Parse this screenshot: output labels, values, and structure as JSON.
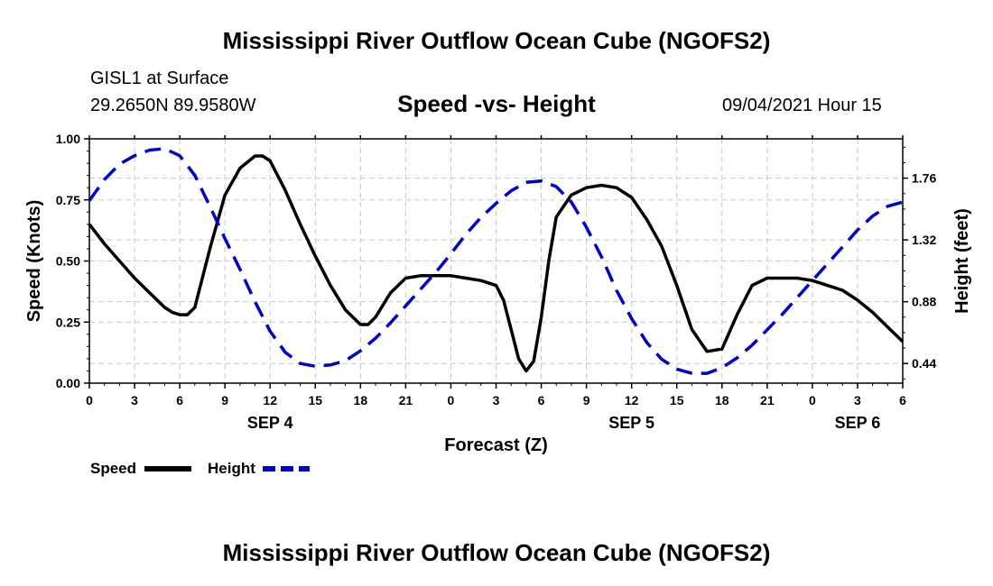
{
  "header": {
    "title": "Mississippi River Outflow Ocean Cube (NGOFS2)",
    "station": "GISL1 at Surface",
    "coords": "29.2650N  89.9580W",
    "subtitle": "Speed -vs- Height",
    "timestamp": "09/04/2021 Hour 15"
  },
  "footer": {
    "title": "Mississippi River Outflow Ocean Cube (NGOFS2)"
  },
  "colors": {
    "speed": "#000000",
    "height": "#0000cc",
    "grid": "#c8c8c8"
  },
  "chart_data": {
    "type": "line",
    "title": "Speed -vs- Height",
    "xlabel": "Forecast (Z)",
    "ylabel": "Speed (Knots)",
    "ylabel_right": "Height (feet)",
    "xlim": [
      0,
      54
    ],
    "ylim": [
      0,
      1
    ],
    "ylim_right": [
      0.3,
      2.04
    ],
    "x_ticks": [
      0,
      3,
      6,
      9,
      12,
      15,
      18,
      21,
      24,
      27,
      30,
      33,
      36,
      39,
      42,
      45,
      48,
      51,
      54
    ],
    "x_tick_labels": [
      "0",
      "3",
      "6",
      "9",
      "12",
      "15",
      "18",
      "21",
      "0",
      "3",
      "6",
      "9",
      "12",
      "15",
      "18",
      "21",
      "0",
      "3",
      "6"
    ],
    "date_labels": [
      {
        "x": 12,
        "label": "SEP 4"
      },
      {
        "x": 36,
        "label": "SEP 5"
      },
      {
        "x": 51,
        "label": "SEP 6"
      }
    ],
    "y_ticks": [
      0.0,
      0.25,
      0.5,
      0.75,
      1.0
    ],
    "y_tick_labels": [
      "0.00",
      "0.25",
      "0.50",
      "0.75",
      "1.00"
    ],
    "y_ticks_right": [
      0.44,
      0.88,
      1.32,
      1.76
    ],
    "y_tick_labels_right": [
      "0.44",
      "0.88",
      "1.32",
      "1.76"
    ],
    "grid": true,
    "legend_position": "bottom-left",
    "series": [
      {
        "name": "Speed",
        "axis": "left",
        "style": "solid",
        "x": [
          0,
          1,
          2,
          3,
          4,
          5,
          5.5,
          6,
          6.5,
          7,
          8,
          9,
          10,
          11,
          11.5,
          12,
          13,
          14,
          15,
          16,
          17,
          18,
          18.5,
          19,
          20,
          21,
          22,
          23,
          24,
          25,
          26,
          27,
          27.5,
          28,
          28.5,
          29,
          29.5,
          30,
          30.5,
          31,
          32,
          33,
          34,
          35,
          35.5,
          36,
          37,
          38,
          39,
          40,
          41,
          42,
          43,
          44,
          45,
          46,
          47,
          48,
          49,
          50,
          51,
          52,
          53,
          54
        ],
        "values": [
          0.65,
          0.57,
          0.5,
          0.43,
          0.37,
          0.31,
          0.29,
          0.28,
          0.28,
          0.31,
          0.55,
          0.77,
          0.88,
          0.93,
          0.93,
          0.91,
          0.79,
          0.65,
          0.52,
          0.4,
          0.3,
          0.24,
          0.24,
          0.27,
          0.37,
          0.43,
          0.44,
          0.44,
          0.44,
          0.43,
          0.42,
          0.4,
          0.34,
          0.22,
          0.1,
          0.05,
          0.09,
          0.27,
          0.5,
          0.68,
          0.77,
          0.8,
          0.81,
          0.8,
          0.78,
          0.76,
          0.67,
          0.56,
          0.4,
          0.22,
          0.13,
          0.14,
          0.28,
          0.4,
          0.43,
          0.43,
          0.43,
          0.42,
          0.4,
          0.38,
          0.34,
          0.29,
          0.23,
          0.17
        ]
      },
      {
        "name": "Height",
        "axis": "right",
        "style": "dashed",
        "x": [
          0,
          1,
          2,
          3,
          4,
          5,
          6,
          7,
          8,
          9,
          10,
          11,
          12,
          13,
          14,
          15,
          16,
          17,
          18,
          19,
          20,
          21,
          22,
          23,
          24,
          25,
          26,
          27,
          28,
          29,
          30,
          31,
          32,
          33,
          34,
          35,
          36,
          37,
          38,
          39,
          40,
          41,
          42,
          43,
          44,
          45,
          46,
          47,
          48,
          49,
          50,
          51,
          52,
          53,
          54
        ],
        "values": [
          1.6,
          1.75,
          1.86,
          1.92,
          1.96,
          1.97,
          1.92,
          1.78,
          1.56,
          1.33,
          1.11,
          0.88,
          0.67,
          0.52,
          0.44,
          0.42,
          0.43,
          0.46,
          0.53,
          0.62,
          0.73,
          0.85,
          0.97,
          1.09,
          1.22,
          1.36,
          1.48,
          1.58,
          1.67,
          1.73,
          1.74,
          1.7,
          1.59,
          1.41,
          1.2,
          0.96,
          0.76,
          0.59,
          0.47,
          0.4,
          0.37,
          0.37,
          0.41,
          0.48,
          0.57,
          0.68,
          0.79,
          0.91,
          1.03,
          1.15,
          1.27,
          1.39,
          1.49,
          1.56,
          1.59
        ]
      }
    ]
  }
}
